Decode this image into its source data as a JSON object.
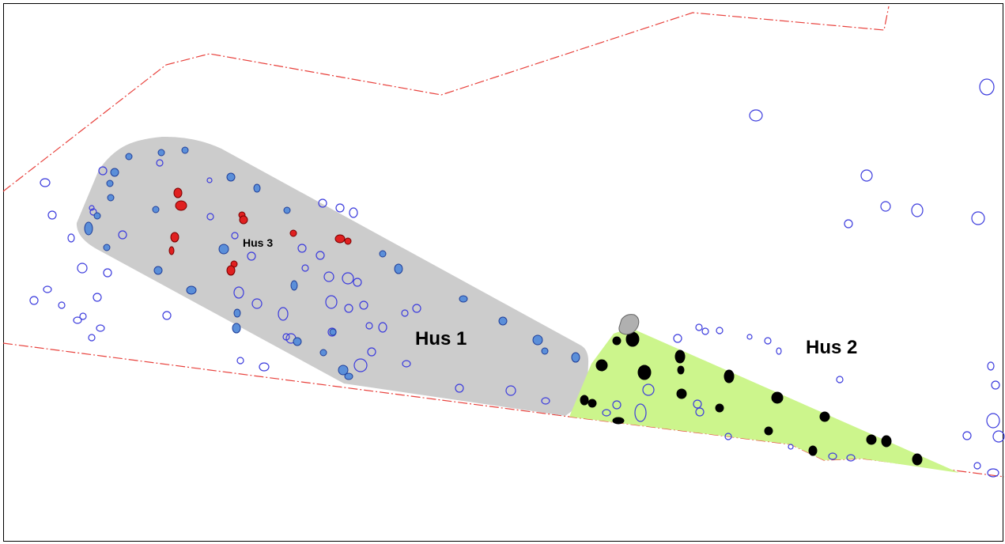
{
  "labels": {
    "hus1": "Hus 1",
    "hus2": "Hus 2",
    "hus3": "Hus 3"
  },
  "colors": {
    "hus1_fill": "#cccccc",
    "hus2_fill": "#ccf58c",
    "boundary": "#e8413c",
    "posthole_outline": "#3b3bdd",
    "posthole_blue_fill": "#5b8fd9",
    "posthole_red_fill": "#e02020",
    "posthole_black_fill": "#000000",
    "stone_fill": "#b0b0b0"
  },
  "features": {
    "hus1_postholes": "blue-filled",
    "hus2_postholes": "black-filled",
    "hus3_postholes": "red-filled",
    "unassigned_postholes": "blue-outline"
  }
}
